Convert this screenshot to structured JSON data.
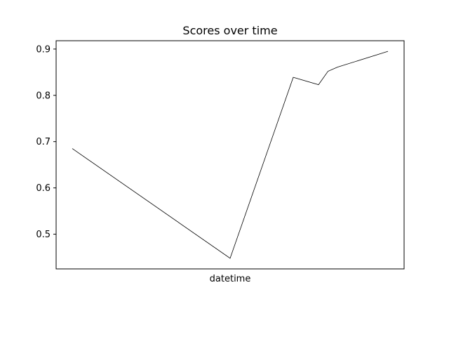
{
  "chart_data": {
    "type": "line",
    "title": "Scores over time",
    "xlabel": "datetime",
    "ylabel": "",
    "x_tick_labels": [],
    "ylim": [
      0.425,
      0.918
    ],
    "y_ticks": [
      0.5,
      0.6,
      0.7,
      0.8,
      0.9
    ],
    "y_tick_labels": [
      "0.5",
      "0.6",
      "0.7",
      "0.8",
      "0.9"
    ],
    "grid": false,
    "series": [
      {
        "color": "#000000",
        "points": [
          {
            "x": 0.0,
            "y": 0.685
          },
          {
            "x": 0.5,
            "y": 0.448
          },
          {
            "x": 0.7,
            "y": 0.839
          },
          {
            "x": 0.78,
            "y": 0.823
          },
          {
            "x": 0.81,
            "y": 0.852
          },
          {
            "x": 0.84,
            "y": 0.861
          },
          {
            "x": 1.0,
            "y": 0.895
          }
        ]
      }
    ]
  }
}
